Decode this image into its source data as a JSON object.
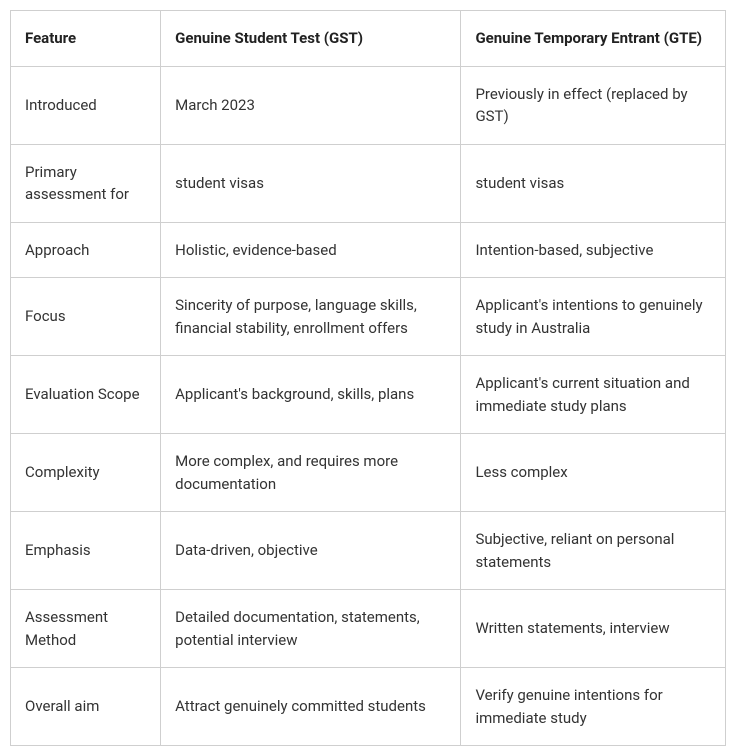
{
  "table": {
    "border_color": "#cfcfcf",
    "background_color": "#ffffff",
    "text_color": "#333333",
    "header_text_color": "#222222",
    "font_size": 15,
    "header_font_weight": 700,
    "column_widths_percent": [
      21,
      42,
      37
    ],
    "columns": [
      "Feature",
      "Genuine Student Test (GST)",
      "Genuine Temporary Entrant (GTE)"
    ],
    "rows": [
      [
        "Introduced",
        "March 2023",
        "Previously in effect (replaced by GST)"
      ],
      [
        "Primary assessment for",
        "student visas",
        "student visas"
      ],
      [
        "Approach",
        "Holistic, evidence-based",
        "Intention-based, subjective"
      ],
      [
        "Focus",
        "Sincerity of purpose, language skills, financial stability, enrollment offers",
        "Applicant's intentions to genuinely study in Australia"
      ],
      [
        "Evaluation Scope",
        "Applicant's background, skills, plans",
        "Applicant's current situation and immediate study plans"
      ],
      [
        "Complexity",
        "More complex, and requires more documentation",
        "Less complex"
      ],
      [
        "Emphasis",
        "Data-driven, objective",
        "Subjective, reliant on personal statements"
      ],
      [
        "Assessment Method",
        "Detailed documentation, statements, potential interview",
        "Written statements, interview"
      ],
      [
        "Overall aim",
        "Attract genuinely committed students",
        "Verify genuine intentions for immediate study"
      ]
    ]
  }
}
